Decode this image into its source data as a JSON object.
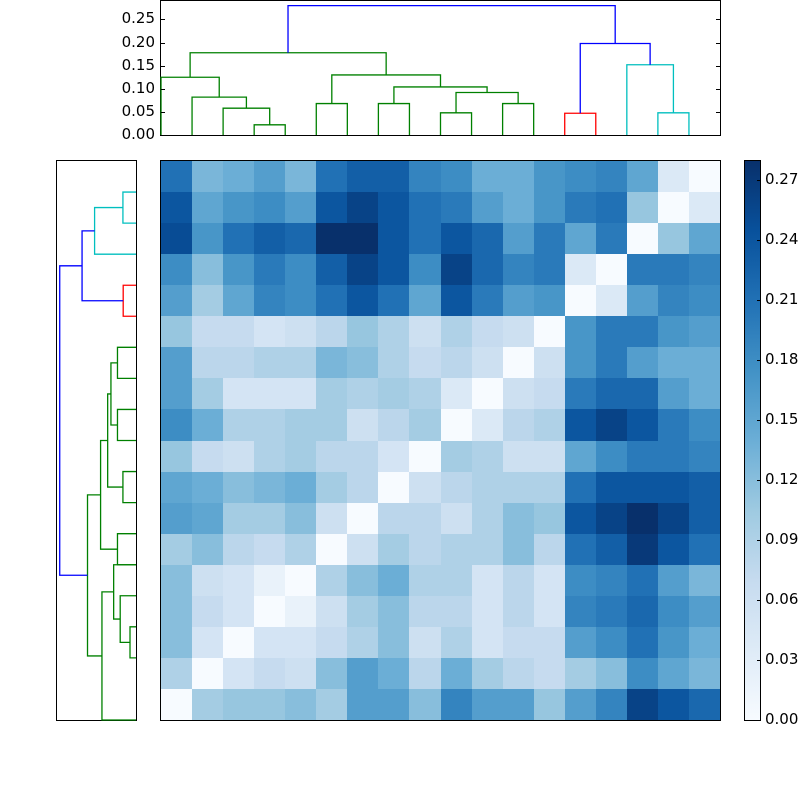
{
  "chart_data": {
    "type": "heatmap",
    "title": "",
    "description": "Clustered heatmap (18x18 distance matrix) with dendrograms on top and left, Blues colormap",
    "colormap": "Blues",
    "vmin": 0.0,
    "vmax": 0.28,
    "xlabel": "",
    "ylabel": "",
    "matrix": [
      [
        0.21,
        0.13,
        0.14,
        0.16,
        0.13,
        0.21,
        0.23,
        0.23,
        0.19,
        0.18,
        0.14,
        0.14,
        0.17,
        0.18,
        0.19,
        0.15,
        0.04,
        0.0
      ],
      [
        0.24,
        0.15,
        0.17,
        0.18,
        0.16,
        0.24,
        0.26,
        0.24,
        0.21,
        0.2,
        0.16,
        0.14,
        0.17,
        0.2,
        0.21,
        0.11,
        0.0,
        0.04
      ],
      [
        0.25,
        0.17,
        0.21,
        0.23,
        0.22,
        0.28,
        0.29,
        0.24,
        0.21,
        0.24,
        0.22,
        0.16,
        0.2,
        0.15,
        0.2,
        0.0,
        0.11,
        0.15
      ],
      [
        0.18,
        0.12,
        0.17,
        0.2,
        0.18,
        0.23,
        0.26,
        0.24,
        0.18,
        0.26,
        0.22,
        0.19,
        0.2,
        0.04,
        0.0,
        0.2,
        0.2,
        0.19
      ],
      [
        0.16,
        0.1,
        0.15,
        0.19,
        0.18,
        0.21,
        0.24,
        0.21,
        0.15,
        0.24,
        0.2,
        0.16,
        0.17,
        0.0,
        0.04,
        0.16,
        0.19,
        0.18
      ],
      [
        0.11,
        0.07,
        0.07,
        0.05,
        0.06,
        0.08,
        0.11,
        0.09,
        0.06,
        0.09,
        0.07,
        0.06,
        0.0,
        0.17,
        0.2,
        0.2,
        0.17,
        0.16
      ],
      [
        0.16,
        0.08,
        0.08,
        0.09,
        0.09,
        0.13,
        0.12,
        0.09,
        0.07,
        0.08,
        0.06,
        0.0,
        0.06,
        0.17,
        0.2,
        0.16,
        0.14,
        0.14
      ],
      [
        0.16,
        0.1,
        0.05,
        0.05,
        0.05,
        0.1,
        0.09,
        0.1,
        0.09,
        0.04,
        0.0,
        0.06,
        0.07,
        0.2,
        0.22,
        0.22,
        0.16,
        0.14
      ],
      [
        0.18,
        0.14,
        0.09,
        0.09,
        0.1,
        0.1,
        0.06,
        0.08,
        0.1,
        0.0,
        0.04,
        0.08,
        0.09,
        0.24,
        0.26,
        0.24,
        0.2,
        0.18
      ],
      [
        0.11,
        0.07,
        0.06,
        0.09,
        0.1,
        0.08,
        0.08,
        0.05,
        0.0,
        0.1,
        0.09,
        0.06,
        0.06,
        0.15,
        0.18,
        0.2,
        0.2,
        0.19
      ],
      [
        0.15,
        0.14,
        0.12,
        0.13,
        0.14,
        0.1,
        0.08,
        0.0,
        0.06,
        0.08,
        0.09,
        0.09,
        0.09,
        0.21,
        0.24,
        0.24,
        0.24,
        0.23
      ],
      [
        0.16,
        0.15,
        0.1,
        0.1,
        0.12,
        0.06,
        0.0,
        0.08,
        0.08,
        0.06,
        0.09,
        0.12,
        0.11,
        0.24,
        0.26,
        0.28,
        0.26,
        0.23
      ],
      [
        0.1,
        0.12,
        0.08,
        0.07,
        0.09,
        0.0,
        0.06,
        0.1,
        0.08,
        0.09,
        0.09,
        0.12,
        0.08,
        0.21,
        0.23,
        0.27,
        0.24,
        0.21
      ],
      [
        0.12,
        0.06,
        0.05,
        0.02,
        0.0,
        0.09,
        0.12,
        0.14,
        0.09,
        0.09,
        0.05,
        0.08,
        0.05,
        0.18,
        0.19,
        0.21,
        0.16,
        0.13
      ],
      [
        0.12,
        0.07,
        0.05,
        0.0,
        0.02,
        0.06,
        0.1,
        0.12,
        0.08,
        0.08,
        0.05,
        0.08,
        0.05,
        0.19,
        0.2,
        0.22,
        0.18,
        0.16
      ],
      [
        0.12,
        0.05,
        0.0,
        0.05,
        0.05,
        0.07,
        0.09,
        0.12,
        0.06,
        0.09,
        0.05,
        0.07,
        0.07,
        0.16,
        0.18,
        0.21,
        0.17,
        0.14
      ],
      [
        0.09,
        0.0,
        0.05,
        0.07,
        0.06,
        0.12,
        0.16,
        0.14,
        0.08,
        0.14,
        0.1,
        0.08,
        0.07,
        0.1,
        0.12,
        0.18,
        0.15,
        0.13
      ],
      [
        0.0,
        0.1,
        0.11,
        0.11,
        0.12,
        0.1,
        0.16,
        0.16,
        0.12,
        0.19,
        0.16,
        0.16,
        0.11,
        0.16,
        0.19,
        0.26,
        0.24,
        0.22
      ]
    ],
    "colorbar": {
      "ticks": [
        "0.00",
        "0.03",
        "0.06",
        "0.09",
        "0.12",
        "0.15",
        "0.18",
        "0.21",
        "0.24",
        "0.27"
      ],
      "range": [
        0.0,
        0.28
      ]
    },
    "top_dendrogram": {
      "ylim": [
        0.0,
        0.29
      ],
      "yticks": [
        "0.00",
        "0.05",
        "0.10",
        "0.15",
        "0.20",
        "0.25"
      ],
      "links": [
        {
          "x": [
            2.5,
            3.5
          ],
          "h": 0.022,
          "color": "#008000"
        },
        {
          "x": [
            1.5,
            3.0
          ],
          "h": 0.058,
          "color": "#008000"
        },
        {
          "x": [
            0.5,
            2.25
          ],
          "h": 0.082,
          "color": "#008000"
        },
        {
          "x": [
            -0.5,
            1.375
          ],
          "h": 0.125,
          "color": "#008000"
        },
        {
          "x": [
            4.5,
            5.5
          ],
          "h": 0.068,
          "color": "#008000"
        },
        {
          "x": [
            6.5,
            7.5
          ],
          "h": 0.068,
          "color": "#008000"
        },
        {
          "x": [
            8.5,
            9.5
          ],
          "h": 0.048,
          "color": "#008000"
        },
        {
          "x": [
            10.5,
            11.5
          ],
          "h": 0.068,
          "color": "#008000"
        },
        {
          "x": [
            9.0,
            11.0
          ],
          "h": 0.092,
          "color": "#008000"
        },
        {
          "x": [
            7.0,
            10.0
          ],
          "h": 0.104,
          "color": "#008000"
        },
        {
          "x": [
            5.0,
            8.5
          ],
          "h": 0.13,
          "color": "#008000"
        },
        {
          "x": [
            0.4375,
            6.75
          ],
          "h": 0.178,
          "color": "#008000"
        },
        {
          "x": [
            12.5,
            13.5
          ],
          "h": 0.047,
          "color": "#ff0000"
        },
        {
          "x": [
            15.5,
            16.5
          ],
          "h": 0.048,
          "color": "#00bfbf"
        },
        {
          "x": [
            14.5,
            16.0
          ],
          "h": 0.152,
          "color": "#00bfbf"
        },
        {
          "x": [
            13.0,
            15.25
          ],
          "h": 0.198,
          "color": "#0000ff"
        },
        {
          "x": [
            3.59,
            14.125
          ],
          "h": 0.28,
          "color": "#0000ff"
        }
      ]
    },
    "left_dendrogram": {
      "links": [
        {
          "y": [
            0.5,
            1.5
          ],
          "h": 0.048,
          "color": "#00bfbf"
        },
        {
          "y": [
            1.0,
            2.5
          ],
          "h": 0.152,
          "color": "#00bfbf"
        },
        {
          "y": [
            3.5,
            4.5
          ],
          "h": 0.047,
          "color": "#ff0000"
        },
        {
          "y": [
            1.75,
            4.0
          ],
          "h": 0.198,
          "color": "#0000ff"
        },
        {
          "y": [
            5.5,
            6.5
          ],
          "h": 0.068,
          "color": "#008000"
        },
        {
          "y": [
            7.5,
            8.5
          ],
          "h": 0.068,
          "color": "#008000"
        },
        {
          "y": [
            6.0,
            8.0
          ],
          "h": 0.092,
          "color": "#008000"
        },
        {
          "y": [
            9.5,
            10.5
          ],
          "h": 0.048,
          "color": "#008000"
        },
        {
          "y": [
            11.5,
            12.5
          ],
          "h": 0.068,
          "color": "#008000"
        },
        {
          "y": [
            7.0,
            10.0
          ],
          "h": 0.104,
          "color": "#008000"
        },
        {
          "y": [
            8.5,
            12.0
          ],
          "h": 0.13,
          "color": "#008000"
        },
        {
          "y": [
            14.5,
            15.5
          ],
          "h": 0.022,
          "color": "#008000"
        },
        {
          "y": [
            13.5,
            15.0
          ],
          "h": 0.058,
          "color": "#008000"
        },
        {
          "y": [
            12.5,
            14.25
          ],
          "h": 0.082,
          "color": "#008000"
        },
        {
          "y": [
            13.375,
            17.5
          ],
          "h": 0.125,
          "color": "#008000"
        },
        {
          "y": [
            10.25,
            15.4375
          ],
          "h": 0.178,
          "color": "#008000"
        },
        {
          "y": [
            2.875,
            12.84
          ],
          "h": 0.28,
          "color": "#0000ff"
        }
      ]
    }
  }
}
